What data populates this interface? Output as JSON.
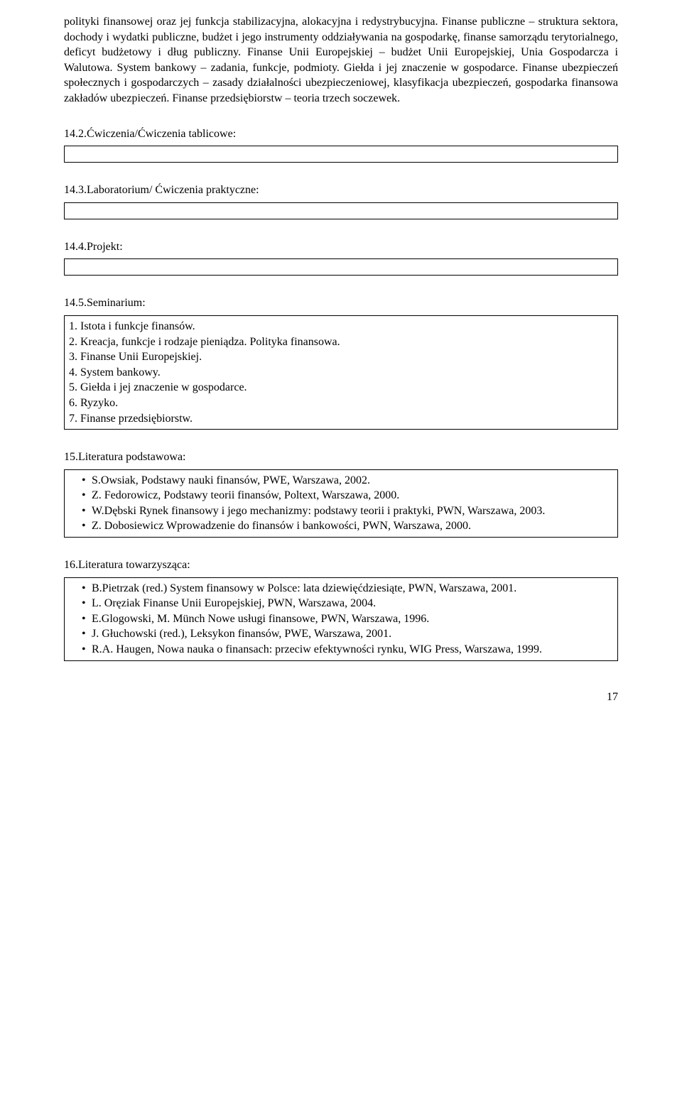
{
  "intro_paragraph": "polityki finansowej oraz jej funkcja stabilizacyjna, alokacyjna i redystrybucyjna. Finanse publiczne – struktura sektora, dochody i wydatki publiczne, budżet i jego instrumenty oddziaływania na gospodarkę, finanse samorządu terytorialnego, deficyt budżetowy i dług publiczny. Finanse Unii Europejskiej – budżet Unii Europejskiej, Unia Gospodarcza i Walutowa. System bankowy – zadania, funkcje, podmioty. Giełda i jej znaczenie w gospodarce. Finanse ubezpieczeń społecznych i gospodarczych – zasady działalności ubezpieczeniowej, klasyfikacja ubezpieczeń, gospodarka finansowa zakładów ubezpieczeń. Finanse przedsiębiorstw – teoria trzech soczewek.",
  "sections": {
    "s14_2": {
      "heading": "14.2.Ćwiczenia/Ćwiczenia tablicowe:"
    },
    "s14_3": {
      "heading": "14.3.Laboratorium/ Ćwiczenia praktyczne:"
    },
    "s14_4": {
      "heading": "14.4.Projekt:"
    },
    "s14_5": {
      "heading": "14.5.Seminarium:",
      "items": [
        "1. Istota i funkcje finansów.",
        "2. Kreacja, funkcje i rodzaje pieniądza. Polityka finansowa.",
        "3. Finanse Unii Europejskiej.",
        "4. System bankowy.",
        "5. Giełda i jej znaczenie w gospodarce.",
        "6. Ryzyko.",
        "7. Finanse przedsiębiorstw."
      ]
    },
    "s15": {
      "heading": "15.Literatura podstawowa:",
      "bullets": [
        "S.Owsiak, Podstawy nauki finansów, PWE, Warszawa, 2002.",
        " Z. Fedorowicz, Podstawy teorii finansów, Poltext, Warszawa, 2000.",
        "W.Dębski Rynek finansowy i jego mechanizmy: podstawy teorii i praktyki, PWN, Warszawa, 2003.",
        "Z. Dobosiewicz Wprowadzenie do finansów i bankowości, PWN, Warszawa, 2000."
      ]
    },
    "s16": {
      "heading": "16.Literatura towarzysząca:",
      "bullets": [
        "B.Pietrzak (red.) System finansowy w Polsce: lata dziewięćdziesiąte, PWN, Warszawa, 2001.",
        "L. Oręziak Finanse Unii Europejskiej, PWN, Warszawa, 2004.",
        " E.Glogowski, M. Münch Nowe usługi finansowe, PWN, Warszawa, 1996.",
        "J. Głuchowski (red.), Leksykon finansów, PWE, Warszawa, 2001.",
        "R.A. Haugen, Nowa nauka o finansach: przeciw efektywności rynku, WIG Press, Warszawa, 1999."
      ]
    }
  },
  "page_number": "17"
}
